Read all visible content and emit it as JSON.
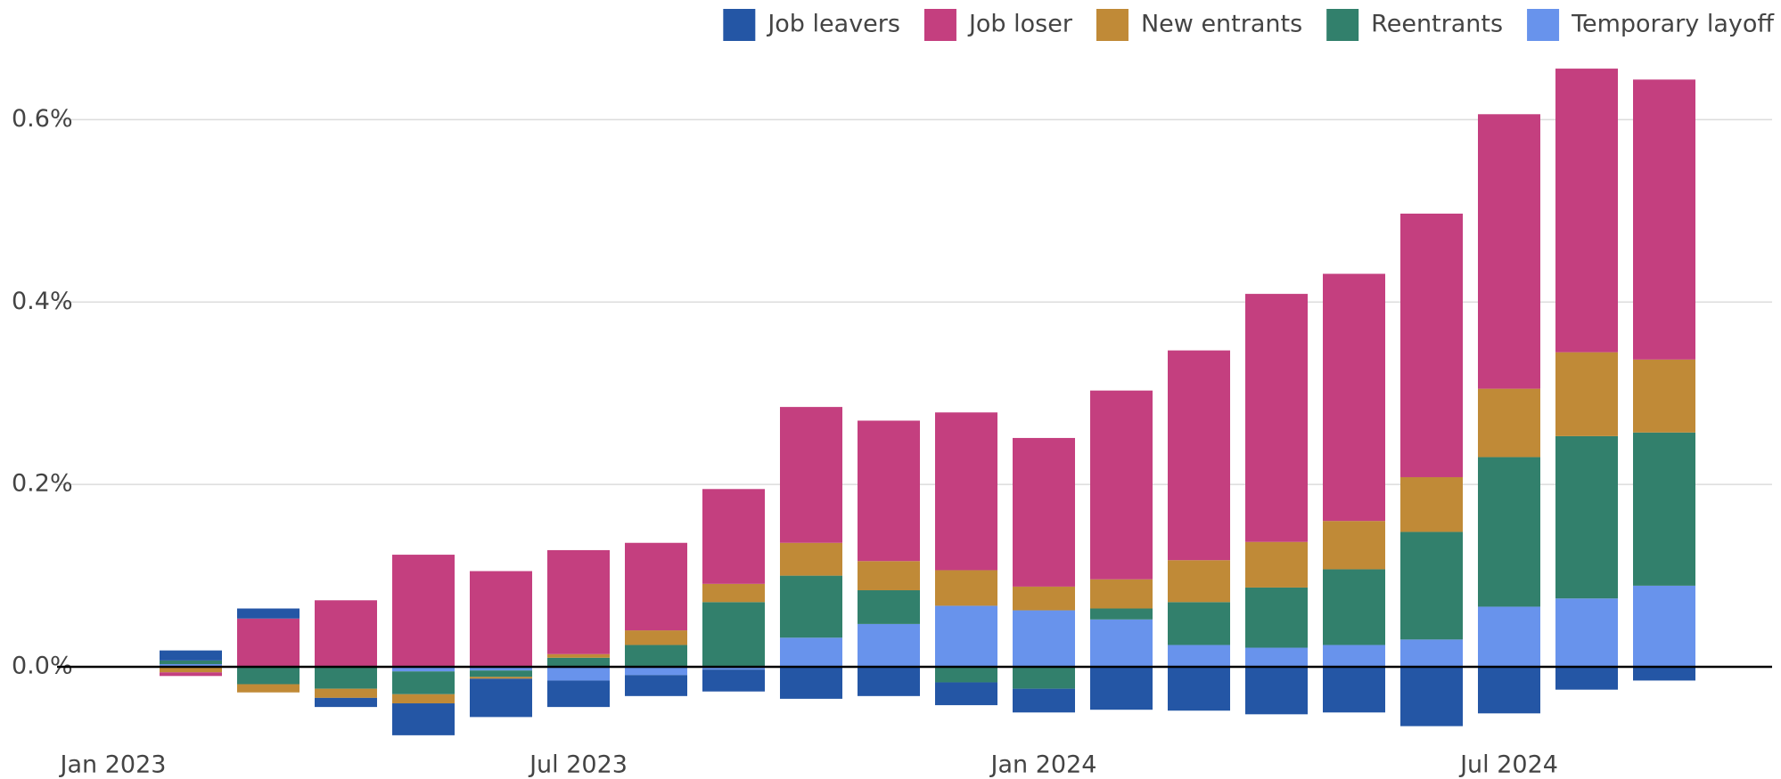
{
  "chart_data": {
    "type": "stacked_bar",
    "categories": [
      "Jan 2023",
      null,
      null,
      null,
      null,
      null,
      "Jul 2023",
      null,
      null,
      null,
      null,
      null,
      "Jan 2024",
      null,
      null,
      null,
      null,
      null,
      "Jul 2024",
      null,
      null
    ],
    "series": [
      {
        "name": "Job leavers",
        "color": "#2456a5",
        "values": [
          null,
          0.011,
          0.011,
          -0.01,
          -0.035,
          -0.042,
          -0.029,
          -0.023,
          -0.024,
          -0.035,
          -0.032,
          -0.025,
          -0.026,
          -0.047,
          -0.048,
          -0.052,
          -0.05,
          -0.065,
          -0.051,
          -0.025,
          -0.015
        ]
      },
      {
        "name": "Job loser",
        "color": "#c43f7f",
        "values": [
          null,
          -0.004,
          0.053,
          0.073,
          0.123,
          0.105,
          0.114,
          0.096,
          0.104,
          0.149,
          0.154,
          0.173,
          0.163,
          0.207,
          0.23,
          0.272,
          0.271,
          0.289,
          0.301,
          0.311,
          0.307
        ]
      },
      {
        "name": "New entrants",
        "color": "#c08a37",
        "values": [
          null,
          -0.006,
          -0.009,
          -0.01,
          -0.01,
          -0.002,
          0.004,
          0.016,
          0.02,
          0.036,
          0.032,
          0.039,
          0.026,
          0.032,
          0.046,
          0.05,
          0.053,
          0.06,
          0.075,
          0.092,
          0.08
        ]
      },
      {
        "name": "Reentrants",
        "color": "#32806c",
        "values": [
          null,
          0.004,
          -0.019,
          -0.024,
          -0.025,
          -0.007,
          0.01,
          0.024,
          0.071,
          0.068,
          0.037,
          -0.017,
          -0.024,
          0.012,
          0.047,
          0.066,
          0.083,
          0.118,
          0.164,
          0.178,
          0.168
        ]
      },
      {
        "name": "Temporary layoff",
        "color": "#6893ec",
        "values": [
          null,
          0.003,
          0,
          0,
          -0.005,
          -0.004,
          -0.015,
          -0.009,
          -0.003,
          0.032,
          0.047,
          0.067,
          0.062,
          0.052,
          0.024,
          0.021,
          0.024,
          0.03,
          0.066,
          0.075,
          0.089
        ]
      }
    ],
    "ylim": [
      -0.08,
      0.7
    ],
    "yticks": [
      {
        "value": 0,
        "label": "0.0%"
      },
      {
        "value": 0.2,
        "label": "0.2%"
      },
      {
        "value": 0.4,
        "label": "0.4%"
      },
      {
        "value": 0.6,
        "label": "0.6%"
      }
    ],
    "grid": true,
    "legend": "top-right"
  }
}
